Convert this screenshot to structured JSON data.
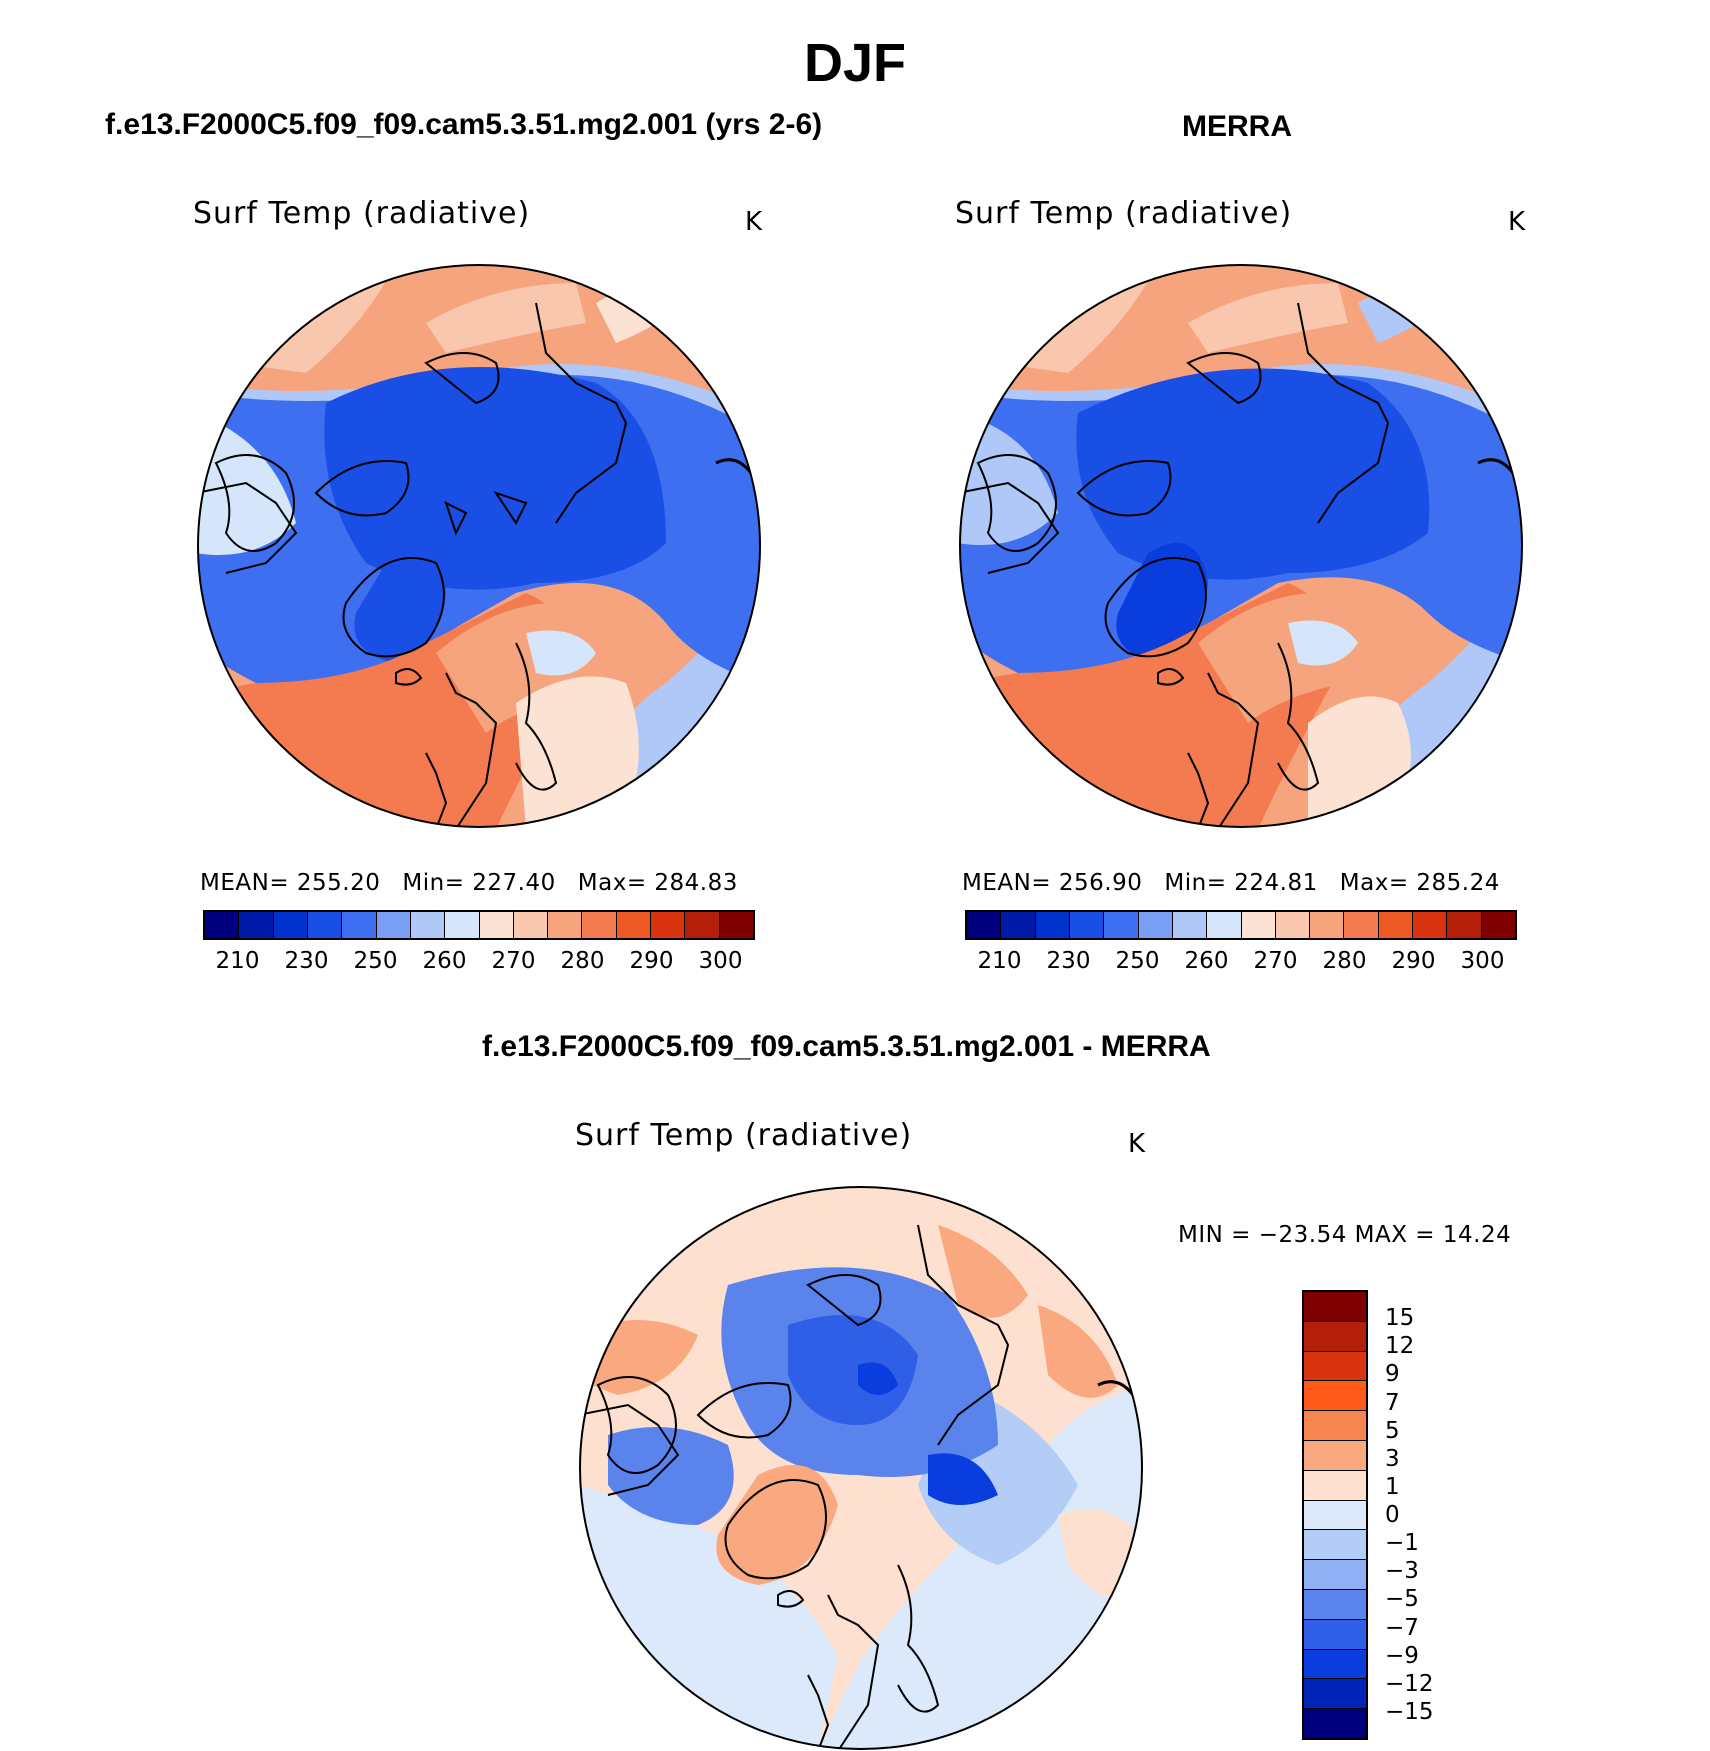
{
  "title": "DJF",
  "panels": [
    {
      "title": "f.e13.F2000C5.f09_f09.cam5.3.51.mg2.001 (yrs 2-6)",
      "variable": "Surf Temp (radiative)",
      "units": "K",
      "mean": "MEAN= 255.20",
      "min": "Min= 227.40",
      "max": "Max= 284.83"
    },
    {
      "title": "MERRA",
      "variable": "Surf Temp (radiative)",
      "units": "K",
      "mean": "MEAN= 256.90",
      "min": "Min= 224.81",
      "max": "Max= 285.24"
    }
  ],
  "diff_panel": {
    "title": "f.e13.F2000C5.f09_f09.cam5.3.51.mg2.001 - MERRA",
    "variable": "Surf Temp (radiative)",
    "units": "K",
    "minmax": "MIN = −23.54 MAX =   14.24"
  },
  "colorbar_abs": {
    "colors": [
      "#00007f",
      "#0019a6",
      "#0033cc",
      "#1a4fe6",
      "#3d6ff0",
      "#7b9ff5",
      "#b0c8f7",
      "#d6e6fa",
      "#fbe2d2",
      "#f9c7ad",
      "#f6a47e",
      "#f47a50",
      "#ee5a26",
      "#d8340f",
      "#b31f08",
      "#7f0000"
    ],
    "ticks": [
      "210",
      "230",
      "250",
      "260",
      "270",
      "280",
      "290",
      "300"
    ]
  },
  "colorbar_diff": {
    "colors": [
      "#7f0000",
      "#b31f08",
      "#d8340f",
      "#ff5a1a",
      "#f7854f",
      "#f9a880",
      "#fde0cf",
      "#dbe9fa",
      "#b3cdf7",
      "#8fb0f2",
      "#5a84ec",
      "#2e5fe6",
      "#0a3ddd",
      "#0024b8",
      "#00007f"
    ],
    "ticks": [
      "15",
      "12",
      "9",
      "7",
      "5",
      "3",
      "1",
      "0",
      "−1",
      "−3",
      "−5",
      "−7",
      "−9",
      "−12",
      "−15"
    ]
  }
}
